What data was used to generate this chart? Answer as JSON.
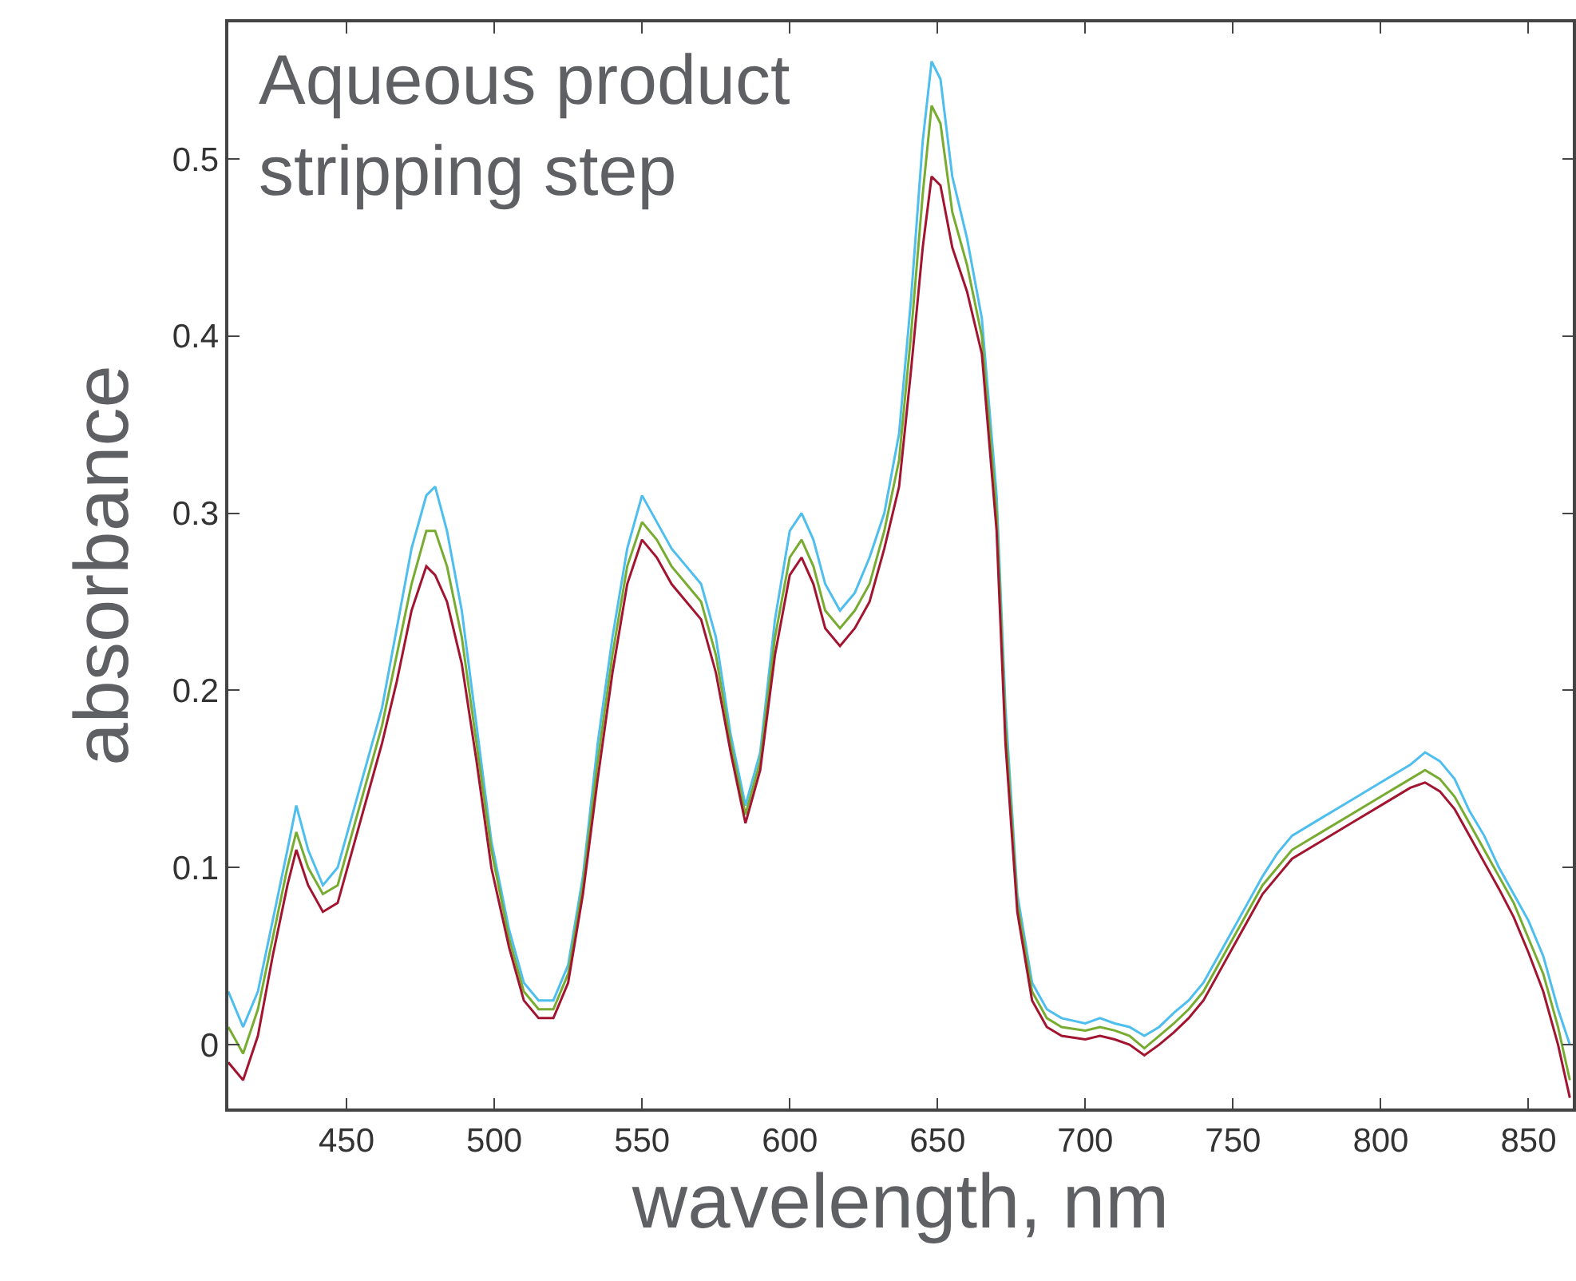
{
  "chart_data": {
    "type": "line",
    "xlabel": "wavelength, nm",
    "ylabel": "absorbance",
    "annotations": [
      "Aqueous product\nstripping step"
    ],
    "x": [
      410,
      415,
      420,
      425,
      430,
      433,
      437,
      442,
      447,
      452,
      457,
      462,
      467,
      472,
      477,
      480,
      484,
      489,
      494,
      499,
      505,
      510,
      515,
      520,
      525,
      530,
      535,
      540,
      545,
      550,
      555,
      560,
      565,
      570,
      575,
      580,
      585,
      590,
      595,
      600,
      604,
      608,
      612,
      617,
      622,
      627,
      632,
      637,
      641,
      645,
      648,
      651,
      655,
      660,
      665,
      670,
      673,
      677,
      682,
      687,
      692,
      700,
      705,
      710,
      715,
      720,
      725,
      730,
      735,
      740,
      745,
      750,
      755,
      760,
      765,
      770,
      780,
      790,
      800,
      810,
      815,
      820,
      825,
      830,
      835,
      840,
      845,
      850,
      855,
      860,
      864
    ],
    "series": [
      {
        "color": "#4dbeee",
        "values": [
          0.03,
          0.01,
          0.03,
          0.07,
          0.11,
          0.135,
          0.11,
          0.09,
          0.1,
          0.13,
          0.16,
          0.19,
          0.235,
          0.28,
          0.31,
          0.315,
          0.29,
          0.245,
          0.18,
          0.115,
          0.065,
          0.035,
          0.025,
          0.025,
          0.045,
          0.095,
          0.17,
          0.23,
          0.28,
          0.31,
          0.295,
          0.28,
          0.27,
          0.26,
          0.23,
          0.175,
          0.135,
          0.165,
          0.24,
          0.29,
          0.3,
          0.285,
          0.26,
          0.245,
          0.255,
          0.275,
          0.3,
          0.345,
          0.42,
          0.51,
          0.555,
          0.545,
          0.49,
          0.455,
          0.41,
          0.31,
          0.19,
          0.085,
          0.035,
          0.02,
          0.015,
          0.012,
          0.015,
          0.012,
          0.01,
          0.005,
          0.01,
          0.018,
          0.025,
          0.035,
          0.05,
          0.065,
          0.08,
          0.095,
          0.108,
          0.118,
          0.128,
          0.138,
          0.148,
          0.158,
          0.165,
          0.16,
          0.15,
          0.132,
          0.118,
          0.1,
          0.085,
          0.07,
          0.05,
          0.02,
          0.0
        ]
      },
      {
        "color": "#77ac30",
        "values": [
          0.01,
          -0.005,
          0.02,
          0.06,
          0.1,
          0.12,
          0.1,
          0.085,
          0.09,
          0.12,
          0.15,
          0.18,
          0.22,
          0.26,
          0.29,
          0.29,
          0.27,
          0.23,
          0.17,
          0.11,
          0.06,
          0.03,
          0.02,
          0.02,
          0.04,
          0.09,
          0.16,
          0.22,
          0.27,
          0.295,
          0.285,
          0.27,
          0.26,
          0.25,
          0.22,
          0.17,
          0.13,
          0.16,
          0.23,
          0.275,
          0.285,
          0.27,
          0.245,
          0.235,
          0.245,
          0.26,
          0.29,
          0.33,
          0.4,
          0.48,
          0.53,
          0.52,
          0.47,
          0.44,
          0.4,
          0.3,
          0.18,
          0.08,
          0.03,
          0.015,
          0.01,
          0.008,
          0.01,
          0.008,
          0.005,
          -0.002,
          0.005,
          0.012,
          0.02,
          0.03,
          0.045,
          0.06,
          0.075,
          0.09,
          0.1,
          0.11,
          0.12,
          0.13,
          0.14,
          0.15,
          0.155,
          0.15,
          0.14,
          0.125,
          0.11,
          0.095,
          0.08,
          0.06,
          0.04,
          0.01,
          -0.02
        ]
      },
      {
        "color": "#a2142f",
        "values": [
          -0.01,
          -0.02,
          0.005,
          0.05,
          0.09,
          0.11,
          0.09,
          0.075,
          0.08,
          0.11,
          0.14,
          0.17,
          0.205,
          0.245,
          0.27,
          0.265,
          0.25,
          0.215,
          0.16,
          0.1,
          0.055,
          0.025,
          0.015,
          0.015,
          0.035,
          0.085,
          0.15,
          0.21,
          0.26,
          0.285,
          0.275,
          0.26,
          0.25,
          0.24,
          0.21,
          0.165,
          0.125,
          0.155,
          0.22,
          0.265,
          0.275,
          0.26,
          0.235,
          0.225,
          0.235,
          0.25,
          0.28,
          0.315,
          0.38,
          0.45,
          0.49,
          0.485,
          0.45,
          0.425,
          0.39,
          0.29,
          0.17,
          0.075,
          0.025,
          0.01,
          0.005,
          0.003,
          0.005,
          0.003,
          0.0,
          -0.006,
          0.0,
          0.007,
          0.015,
          0.025,
          0.04,
          0.055,
          0.07,
          0.085,
          0.095,
          0.105,
          0.115,
          0.125,
          0.135,
          0.145,
          0.148,
          0.143,
          0.133,
          0.118,
          0.103,
          0.088,
          0.072,
          0.052,
          0.03,
          0.0,
          -0.03
        ]
      }
    ],
    "xlim": [
      410,
      865
    ],
    "xticks": [
      450,
      500,
      550,
      600,
      650,
      700,
      750,
      800,
      850
    ],
    "ylim": [
      -0.036,
      0.577
    ],
    "yticks": [
      0,
      0.1,
      0.2,
      0.3,
      0.4,
      0.5
    ],
    "grid": false
  }
}
